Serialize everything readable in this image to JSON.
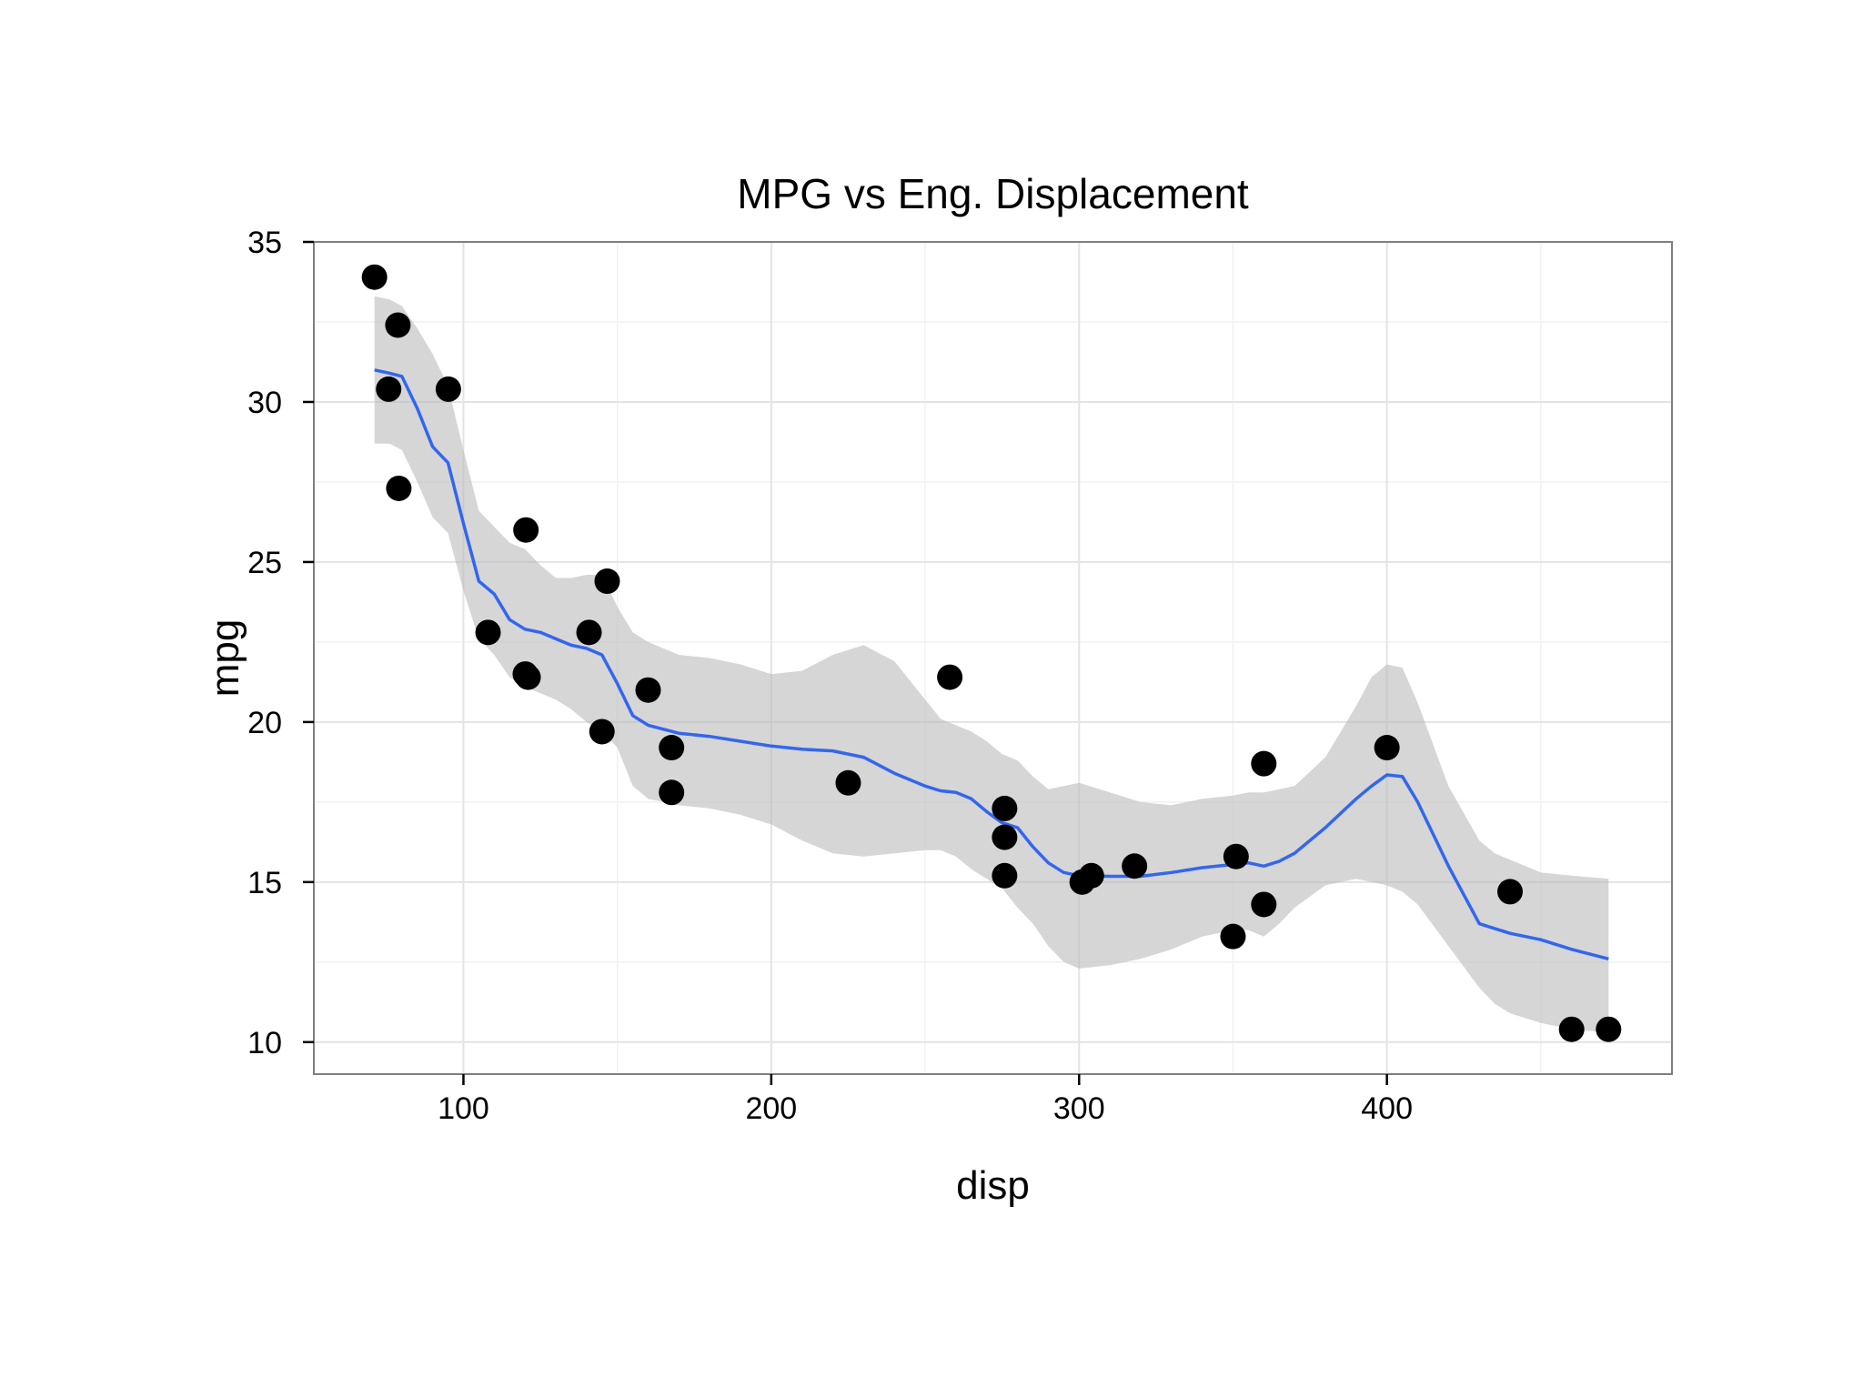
{
  "chart_data": {
    "type": "scatter",
    "title": "MPG vs Eng. Displacement",
    "xlabel": "disp",
    "ylabel": "mpg",
    "xlim": [
      51.4,
      492.6
    ],
    "ylim": [
      9.0,
      35.0
    ],
    "xticks": [
      100,
      200,
      300,
      400
    ],
    "yticks": [
      10,
      15,
      20,
      25,
      30,
      35
    ],
    "grid": true,
    "legend": "none",
    "colors": {
      "points": "#000000",
      "smooth_line": "#3366ee",
      "band": "#bdbdbf",
      "grid_major": "#e3e3e3",
      "grid_minor": "#f1f1f1",
      "panel_border": "#7f7f7f"
    },
    "points": [
      {
        "x": 71.1,
        "y": 33.9
      },
      {
        "x": 75.7,
        "y": 30.4
      },
      {
        "x": 78.7,
        "y": 32.4
      },
      {
        "x": 79.0,
        "y": 27.3
      },
      {
        "x": 95.1,
        "y": 30.4
      },
      {
        "x": 108.0,
        "y": 22.8
      },
      {
        "x": 120.1,
        "y": 21.5
      },
      {
        "x": 120.3,
        "y": 26.0
      },
      {
        "x": 121.0,
        "y": 21.4
      },
      {
        "x": 140.8,
        "y": 22.8
      },
      {
        "x": 145.0,
        "y": 19.7
      },
      {
        "x": 146.7,
        "y": 24.4
      },
      {
        "x": 160.0,
        "y": 21.0
      },
      {
        "x": 167.6,
        "y": 19.2
      },
      {
        "x": 167.6,
        "y": 17.8
      },
      {
        "x": 225.0,
        "y": 18.1
      },
      {
        "x": 258.0,
        "y": 21.4
      },
      {
        "x": 275.8,
        "y": 17.3
      },
      {
        "x": 275.8,
        "y": 16.4
      },
      {
        "x": 275.8,
        "y": 15.2
      },
      {
        "x": 301.0,
        "y": 15.0
      },
      {
        "x": 304.0,
        "y": 15.2
      },
      {
        "x": 318.0,
        "y": 15.5
      },
      {
        "x": 350.0,
        "y": 13.3
      },
      {
        "x": 351.0,
        "y": 15.8
      },
      {
        "x": 360.0,
        "y": 18.7
      },
      {
        "x": 360.0,
        "y": 14.3
      },
      {
        "x": 400.0,
        "y": 19.2
      },
      {
        "x": 440.0,
        "y": 14.7
      },
      {
        "x": 460.0,
        "y": 10.4
      },
      {
        "x": 472.0,
        "y": 10.4
      }
    ],
    "smooth": {
      "x": [
        71.1,
        76,
        80,
        85,
        90,
        95,
        100,
        105,
        110,
        115,
        120,
        125,
        130,
        135,
        140,
        145,
        150,
        155,
        160,
        170,
        180,
        190,
        200,
        210,
        220,
        230,
        240,
        250,
        255,
        260,
        265,
        270,
        275,
        280,
        285,
        290,
        295,
        300,
        310,
        320,
        330,
        340,
        350,
        355,
        360,
        365,
        370,
        380,
        390,
        395,
        400,
        405,
        410,
        420,
        430,
        435,
        440,
        450,
        460,
        472
      ],
      "y": [
        31.0,
        30.9,
        30.8,
        29.8,
        28.6,
        28.1,
        26.2,
        24.4,
        24.0,
        23.2,
        22.9,
        22.8,
        22.6,
        22.4,
        22.3,
        22.1,
        21.2,
        20.2,
        19.9,
        19.65,
        19.55,
        19.4,
        19.25,
        19.15,
        19.1,
        18.9,
        18.4,
        18.0,
        17.85,
        17.8,
        17.6,
        17.2,
        16.85,
        16.7,
        16.1,
        15.6,
        15.3,
        15.2,
        15.18,
        15.18,
        15.3,
        15.45,
        15.55,
        15.6,
        15.5,
        15.65,
        15.9,
        16.7,
        17.6,
        18.0,
        18.35,
        18.3,
        17.5,
        15.5,
        13.7,
        13.55,
        13.4,
        13.2,
        12.9,
        12.6
      ],
      "lower": [
        28.7,
        28.7,
        28.5,
        27.5,
        26.4,
        25.9,
        24.1,
        22.6,
        22.1,
        21.4,
        21.1,
        20.9,
        20.7,
        20.4,
        20.0,
        19.7,
        19.2,
        18.0,
        17.6,
        17.4,
        17.3,
        17.1,
        16.8,
        16.3,
        15.9,
        15.8,
        15.9,
        16.0,
        16.0,
        15.8,
        15.4,
        15.1,
        14.8,
        14.2,
        13.7,
        13.0,
        12.5,
        12.3,
        12.4,
        12.6,
        12.9,
        13.3,
        13.5,
        13.5,
        13.3,
        13.7,
        14.2,
        14.9,
        15.1,
        15.0,
        14.9,
        14.7,
        14.3,
        13.0,
        11.7,
        11.2,
        10.9,
        10.6,
        10.4,
        10.3
      ],
      "upper": [
        33.3,
        33.2,
        33.0,
        32.3,
        31.5,
        30.5,
        28.5,
        26.6,
        26.1,
        25.6,
        25.4,
        24.9,
        24.5,
        24.5,
        24.6,
        24.6,
        23.6,
        22.8,
        22.5,
        22.1,
        22.0,
        21.8,
        21.5,
        21.6,
        22.1,
        22.4,
        21.9,
        20.7,
        20.1,
        19.9,
        19.7,
        19.4,
        19.0,
        18.8,
        18.3,
        17.9,
        18.0,
        18.1,
        17.8,
        17.5,
        17.4,
        17.6,
        17.7,
        17.8,
        17.8,
        17.9,
        18.0,
        18.9,
        20.5,
        21.4,
        21.8,
        21.7,
        20.6,
        18.0,
        16.3,
        15.9,
        15.7,
        15.3,
        15.2,
        15.1
      ]
    }
  }
}
